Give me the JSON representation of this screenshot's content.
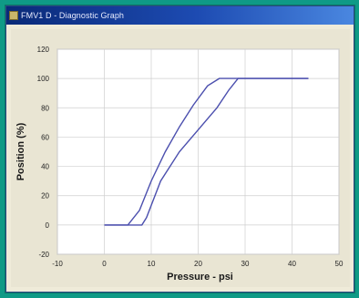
{
  "window": {
    "title": "FMV1 D - Diagnostic Graph"
  },
  "colors": {
    "desktop": "#0f9a86",
    "plot_background": "#ffffff",
    "grid": "#cfcfcf",
    "series": "#4b4fae"
  },
  "chart_data": {
    "type": "line",
    "xlabel": "Pressure - psi",
    "ylabel": "Position (%)",
    "xlim": [
      -10,
      50
    ],
    "ylim": [
      -20,
      120
    ],
    "xticks": [
      -10,
      0,
      10,
      20,
      30,
      40,
      50
    ],
    "yticks": [
      -20,
      0,
      20,
      40,
      60,
      80,
      100,
      120
    ],
    "grid": true,
    "series": [
      {
        "x": [
          0,
          5,
          7.5,
          10,
          13,
          16,
          19,
          22,
          24.5,
          27,
          30,
          35,
          40,
          43.5
        ],
        "y": [
          0,
          0,
          10,
          30,
          50,
          67,
          82,
          95,
          100,
          100,
          100,
          100,
          100,
          100
        ]
      },
      {
        "x": [
          0,
          5,
          8,
          9,
          12,
          16,
          20,
          24,
          26.5,
          28.5,
          35,
          43.5
        ],
        "y": [
          0,
          0,
          0,
          5,
          30,
          50,
          65,
          80,
          92,
          100,
          100,
          100
        ]
      }
    ]
  }
}
